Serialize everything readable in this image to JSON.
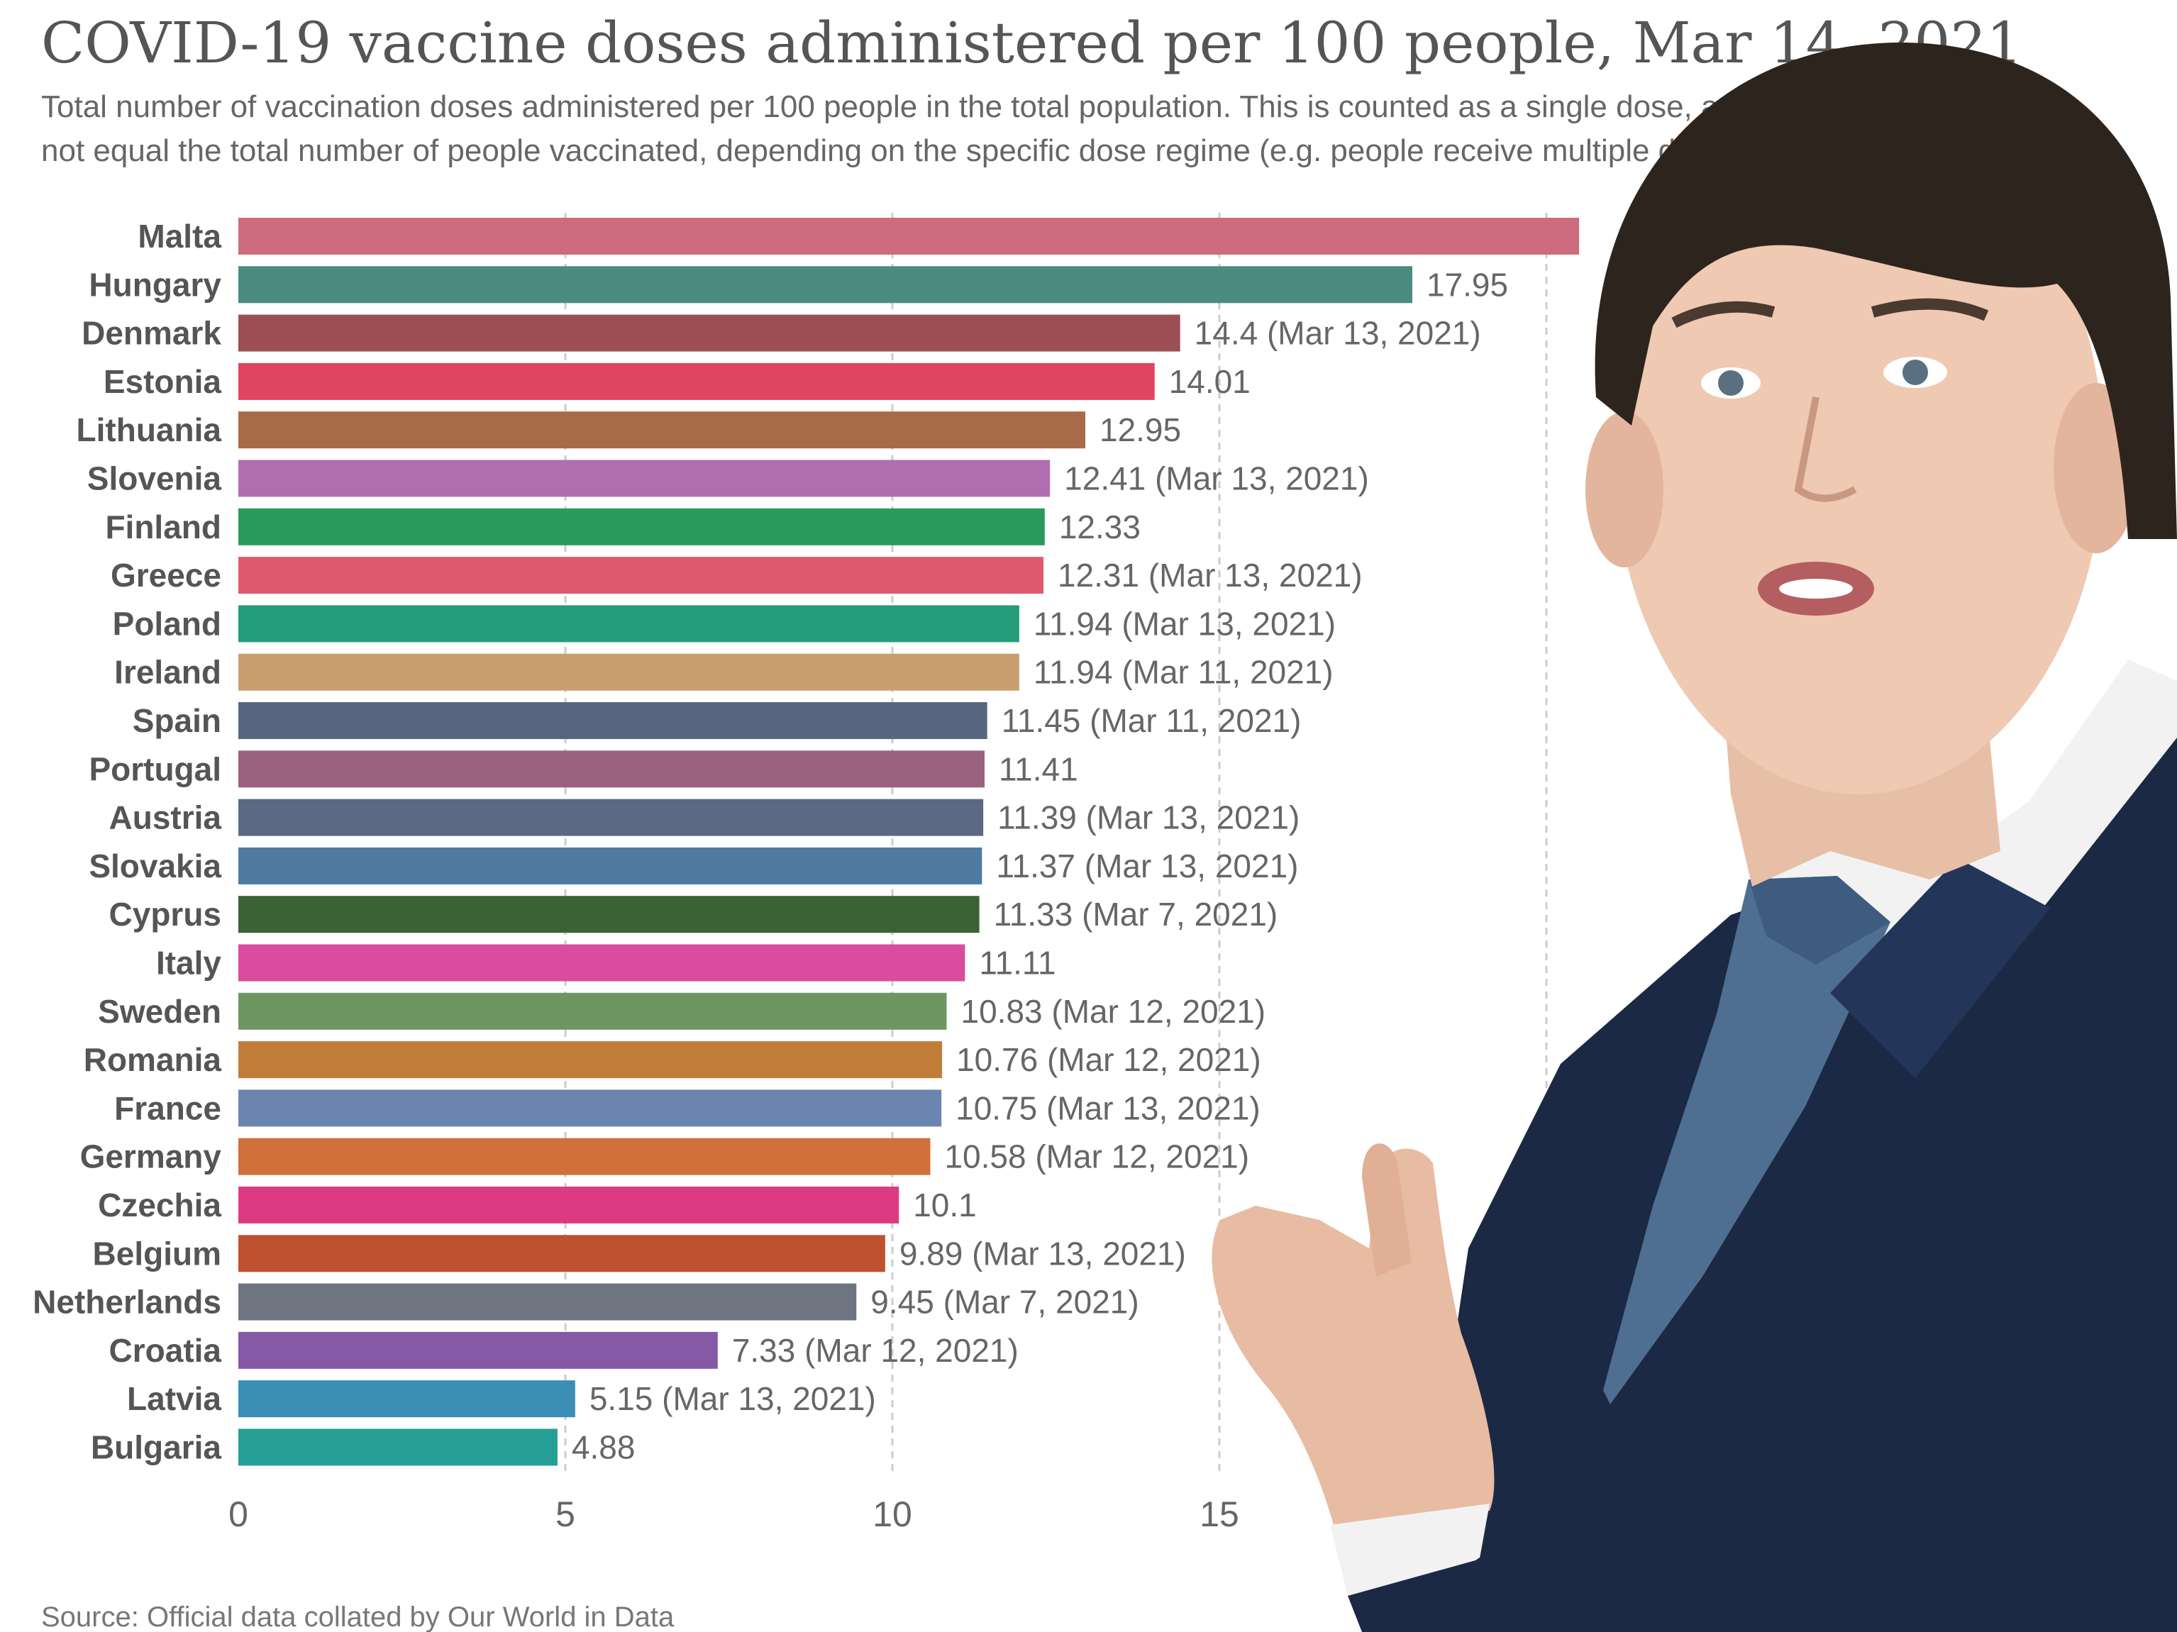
{
  "title": "COVID-19 vaccine doses administered per 100 people, Mar 14, 2021",
  "subtitle_line1": "Total number of vaccination doses administered per 100 people in the total population. This is counted as a single dose, and may",
  "subtitle_line2": "not equal the total number of people vaccinated, depending on the specific dose regime (e.g. people receive multiple doses).",
  "source": "Source: Official data collated by Our World in Data",
  "overlay": {
    "photo": "person-pointing-icon"
  },
  "chart_data": {
    "type": "bar",
    "orientation": "horizontal",
    "xlim": [
      0,
      20
    ],
    "x_ticks": [
      "0",
      "5",
      "10",
      "15"
    ],
    "grid": "vertical-dashed",
    "categories": [
      "Malta",
      "Hungary",
      "Denmark",
      "Estonia",
      "Lithuania",
      "Slovenia",
      "Finland",
      "Greece",
      "Poland",
      "Ireland",
      "Spain",
      "Portugal",
      "Austria",
      "Slovakia",
      "Cyprus",
      "Italy",
      "Sweden",
      "Romania",
      "France",
      "Germany",
      "Czechia",
      "Belgium",
      "Netherlands",
      "Croatia",
      "Latvia",
      "Bulgaria"
    ],
    "values": [
      20.5,
      17.95,
      14.4,
      14.01,
      12.95,
      12.41,
      12.33,
      12.31,
      11.94,
      11.94,
      11.45,
      11.41,
      11.39,
      11.37,
      11.33,
      11.11,
      10.83,
      10.76,
      10.75,
      10.58,
      10.1,
      9.89,
      9.45,
      7.33,
      5.15,
      4.88
    ],
    "labels": [
      "",
      "17.95",
      "14.4 (Mar 13, 2021)",
      "14.01",
      "12.95",
      "12.41 (Mar 13, 2021)",
      "12.33",
      "12.31 (Mar 13, 2021)",
      "11.94 (Mar 13, 2021)",
      "11.94 (Mar 11, 2021)",
      "11.45 (Mar 11, 2021)",
      "11.41",
      "11.39 (Mar 13, 2021)",
      "11.37 (Mar 13, 2021)",
      "11.33 (Mar 7, 2021)",
      "11.11",
      "10.83 (Mar 12, 2021)",
      "10.76 (Mar 12, 2021)",
      "10.75 (Mar 13, 2021)",
      "10.58 (Mar 12, 2021)",
      "10.1",
      "9.89 (Mar 13, 2021)",
      "9.45 (Mar 7, 2021)",
      "7.33 (Mar 12, 2021)",
      "5.15 (Mar 13, 2021)",
      "4.88"
    ],
    "colors": [
      "#CC6C7E",
      "#4A8C82",
      "#9B4F55",
      "#E0465F",
      "#A96A47",
      "#B06EAF",
      "#2A9A5A",
      "#E05A6E",
      "#249E7A",
      "#C8A070",
      "#586680",
      "#9C6080",
      "#5B6A82",
      "#4F7BA0",
      "#3A6234",
      "#D94C9E",
      "#6E9660",
      "#C27C3A",
      "#6C85B0",
      "#D0703A",
      "#DC3B84",
      "#BE5130",
      "#6E7480",
      "#8659A7",
      "#3B8EB5",
      "#259E96"
    ]
  }
}
